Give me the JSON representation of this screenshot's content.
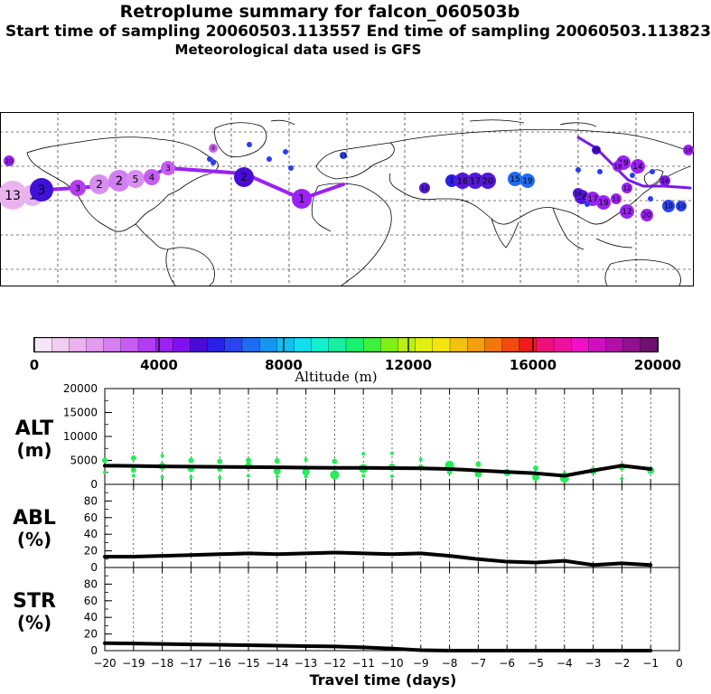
{
  "header": {
    "title": "Retroplume summary for falcon_060503b",
    "subtitle": "Start time of sampling 20060503.113557     End time of sampling 20060503.113823",
    "met": "Meteorological data used is GFS"
  },
  "colorbar": {
    "label": "Altitude (m)",
    "ticks": [
      "0",
      "4000",
      "8000",
      "12000",
      "16000",
      "20000"
    ],
    "colors": [
      "#f7e6f7",
      "#f2cdf2",
      "#eab3f0",
      "#e29bee",
      "#d67ff0",
      "#c65df2",
      "#b23cf4",
      "#9a22f2",
      "#8010f0",
      "#4a0ad8",
      "#2a1fe8",
      "#2a44f0",
      "#1f6cf2",
      "#1596f0",
      "#12bdf0",
      "#10dff0",
      "#12f0d0",
      "#14f0a0",
      "#18f070",
      "#3cf03c",
      "#80f018",
      "#b8f010",
      "#e2f010",
      "#f2e60e",
      "#f2c20e",
      "#f2a00e",
      "#f2780c",
      "#f24a10",
      "#f21a1a",
      "#f0107a",
      "#f010a0",
      "#f010c8",
      "#d010c0",
      "#b010a8",
      "#901090",
      "#701070"
    ]
  },
  "map": {
    "labels": [
      "13",
      "1",
      "3",
      "3",
      "2",
      "2",
      "5",
      "4",
      "3",
      "1",
      "2",
      "1",
      "16",
      "17",
      "20",
      "15",
      "19",
      "18",
      "17",
      "19",
      "16",
      "12",
      "20",
      "19",
      "14",
      "10",
      "10",
      "12",
      "11",
      "18",
      "19",
      "14",
      "16",
      "20",
      "9",
      "13",
      "12"
    ]
  },
  "chart_data": [
    {
      "type": "line",
      "panel": "ALT",
      "ylabel": "ALT\n(m)",
      "ylabel_lines": [
        "ALT",
        "(m)"
      ],
      "ylim": [
        0,
        20000
      ],
      "yticks": [
        "20000",
        "15000",
        "10000",
        "5000",
        "0"
      ],
      "x": [
        -20,
        -19,
        -18,
        -17,
        -16,
        -15,
        -14,
        -13,
        -12,
        -11,
        -10,
        -9,
        -8,
        -7,
        -6,
        -5,
        -4,
        -3,
        -2,
        -1
      ],
      "median_line": [
        3900,
        3850,
        3750,
        3700,
        3650,
        3600,
        3550,
        3500,
        3450,
        3450,
        3400,
        3350,
        3200,
        2900,
        2600,
        2300,
        1800,
        2900,
        3900,
        3200
      ],
      "cluster_points": {
        "color": "#22ee55",
        "x": [
          -20,
          -20,
          -19,
          -19,
          -19,
          -18,
          -18,
          -18,
          -17,
          -17,
          -17,
          -16,
          -16,
          -16,
          -15,
          -15,
          -15,
          -14,
          -14,
          -14,
          -13,
          -13,
          -13,
          -12,
          -12,
          -12,
          -11,
          -11,
          -11,
          -10,
          -10,
          -10,
          -9,
          -9,
          -8,
          -8,
          -7,
          -7,
          -6,
          -5,
          -5,
          -4,
          -4,
          -3,
          -2,
          -2,
          -1
        ],
        "y": [
          5000,
          2500,
          5500,
          3000,
          1800,
          6000,
          3800,
          1500,
          5000,
          3300,
          1500,
          4800,
          3200,
          1400,
          5000,
          3800,
          1800,
          4900,
          2800,
          1600,
          5200,
          2600,
          1600,
          4800,
          2000,
          1500,
          6400,
          3300,
          1800,
          6500,
          3600,
          1700,
          5200,
          3600,
          4000,
          2600,
          4200,
          2200,
          2500,
          3400,
          1500,
          2400,
          1300,
          2800,
          3700,
          1200,
          2900
        ],
        "size": [
          3,
          2,
          3,
          3,
          2,
          2,
          4,
          2,
          3,
          4,
          2,
          3,
          3,
          2,
          3,
          4,
          2,
          3,
          4,
          2,
          2,
          4,
          2,
          3,
          5,
          2,
          2,
          5,
          2,
          2,
          4,
          2,
          2,
          3,
          5,
          3,
          3,
          4,
          4,
          3,
          4,
          2,
          5,
          4,
          4,
          2,
          4
        ]
      }
    },
    {
      "type": "line",
      "panel": "ABL",
      "ylabel": "ABL\n(%)",
      "ylabel_lines": [
        "ABL",
        "(%)"
      ],
      "ylim": [
        0,
        100
      ],
      "yticks": [
        "80",
        "60",
        "40",
        "20",
        "0"
      ],
      "x": [
        -20,
        -19,
        -18,
        -17,
        -16,
        -15,
        -14,
        -13,
        -12,
        -11,
        -10,
        -9,
        -8,
        -7,
        -6,
        -5,
        -4,
        -3,
        -2,
        -1
      ],
      "values": [
        13,
        13,
        14,
        15,
        16,
        17,
        16,
        17,
        18,
        17,
        16,
        17,
        14,
        10,
        7,
        6,
        8,
        3,
        5,
        3
      ]
    },
    {
      "type": "line",
      "panel": "STR",
      "ylabel": "STR\n(%)",
      "ylabel_lines": [
        "STR",
        "(%)"
      ],
      "ylim": [
        0,
        100
      ],
      "yticks": [
        "80",
        "60",
        "40",
        "20",
        "0"
      ],
      "x": [
        -20,
        -19,
        -18,
        -17,
        -16,
        -15,
        -14,
        -13,
        -12,
        -11,
        -10,
        -9,
        -8,
        -7,
        -6,
        -5,
        -4,
        -3,
        -2,
        -1
      ],
      "values": [
        9,
        8.5,
        8,
        7.5,
        7,
        6.5,
        6,
        5.5,
        5,
        4,
        2.5,
        0.5,
        0,
        0,
        0,
        0,
        0,
        0,
        0,
        0
      ]
    },
    {
      "axis": "x",
      "xlabel": "Travel time (days)",
      "xticks": [
        "−20",
        "−19",
        "−18",
        "−17",
        "−16",
        "−15",
        "−14",
        "−13",
        "−12",
        "−11",
        "−10",
        "−9",
        "−8",
        "−7",
        "−6",
        "−5",
        "−4",
        "−3",
        "−2",
        "−1",
        "0"
      ],
      "xlim": [
        -20,
        0
      ]
    }
  ]
}
